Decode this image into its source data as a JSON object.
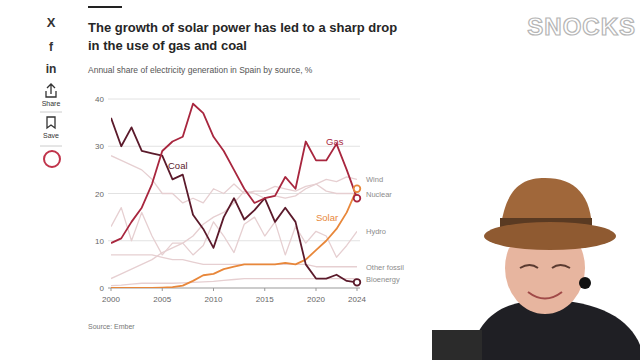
{
  "chart_data": {
    "type": "line",
    "title": "The growth of solar power has led to a sharp drop in the use of gas and coal",
    "subtitle": "Annual share of electricity generation in Spain by source, %",
    "source": "Source: Ember",
    "x": [
      2000,
      2001,
      2002,
      2003,
      2004,
      2005,
      2006,
      2007,
      2008,
      2009,
      2010,
      2011,
      2012,
      2013,
      2014,
      2015,
      2016,
      2017,
      2018,
      2019,
      2020,
      2021,
      2022,
      2023,
      2024
    ],
    "xlim": [
      2000,
      2024
    ],
    "xticks": [
      2000,
      2005,
      2010,
      2015,
      2020,
      2024
    ],
    "ylim": [
      0,
      40
    ],
    "yticks": [
      0,
      10,
      20,
      30,
      40
    ],
    "grid": true,
    "series": [
      {
        "name": "Wind",
        "color": "#e6cfd1",
        "values": [
          2,
          3,
          4,
          5,
          6,
          7.5,
          8.5,
          9.5,
          11,
          13.5,
          15,
          16,
          18,
          20.5,
          20,
          19,
          19.5,
          19,
          19.5,
          21,
          22,
          23,
          22.5,
          23.5,
          23
        ]
      },
      {
        "name": "Nuclear",
        "color": "#e6cfd1",
        "values": [
          28,
          27,
          26,
          25,
          23,
          20,
          20,
          18,
          19,
          18,
          21,
          20,
          22,
          20,
          20.5,
          20.5,
          21.5,
          21,
          20.5,
          21.5,
          22,
          20.5,
          20,
          20,
          20
        ]
      },
      {
        "name": "Hydro",
        "color": "#e6cfd1",
        "values": [
          13,
          17,
          10,
          16,
          11,
          7,
          9.5,
          9.5,
          7,
          9,
          14,
          11,
          7.5,
          13.5,
          15,
          11,
          14,
          7,
          13,
          9.5,
          12,
          11,
          6.5,
          9,
          12
        ]
      },
      {
        "name": "Other fossil",
        "color": "#e6cfd1",
        "values": [
          7,
          7,
          7,
          7,
          7,
          6.5,
          6,
          6,
          5.5,
          5,
          5,
          5,
          5,
          5,
          5,
          5,
          5,
          5,
          5,
          5,
          4.5,
          4.5,
          4.5,
          4.5,
          4.5
        ]
      },
      {
        "name": "Bioenergy",
        "color": "#e6cfd1",
        "values": [
          0.5,
          0.6,
          0.8,
          1,
          1,
          1,
          1,
          1.1,
          1.2,
          1.3,
          1.4,
          1.6,
          1.8,
          2,
          2,
          2,
          2,
          2,
          2,
          2,
          2,
          2,
          2,
          2,
          2
        ]
      },
      {
        "name": "Solar",
        "color": "#e8873a",
        "marker": "end",
        "values": [
          0,
          0,
          0,
          0,
          0,
          0.1,
          0.2,
          0.5,
          1.5,
          2.7,
          3,
          4,
          4.5,
          5,
          5,
          5,
          5,
          5.3,
          5,
          6,
          8,
          10,
          12.5,
          16,
          21
        ]
      },
      {
        "name": "Coal",
        "color": "#5b1a2b",
        "marker": "end",
        "values": [
          36,
          30,
          34,
          29,
          28.5,
          28,
          23,
          24,
          15.5,
          12.5,
          8.5,
          15,
          19,
          14.5,
          16.5,
          19,
          14,
          17,
          14,
          5,
          2,
          2,
          2.8,
          1.5,
          1.2
        ]
      },
      {
        "name": "Gas",
        "color": "#a8263e",
        "marker": "end",
        "values": [
          9.5,
          10.5,
          14,
          17,
          22,
          29,
          31,
          32,
          39,
          37,
          32,
          29,
          25,
          21,
          18,
          19,
          19.5,
          23.5,
          21,
          31,
          27,
          27,
          30.5,
          25,
          19
        ]
      }
    ]
  },
  "sidebar": {
    "icons": [
      "X",
      "f",
      "in"
    ],
    "share": "Share",
    "save": "Save"
  },
  "watermark": "SNOCKS"
}
